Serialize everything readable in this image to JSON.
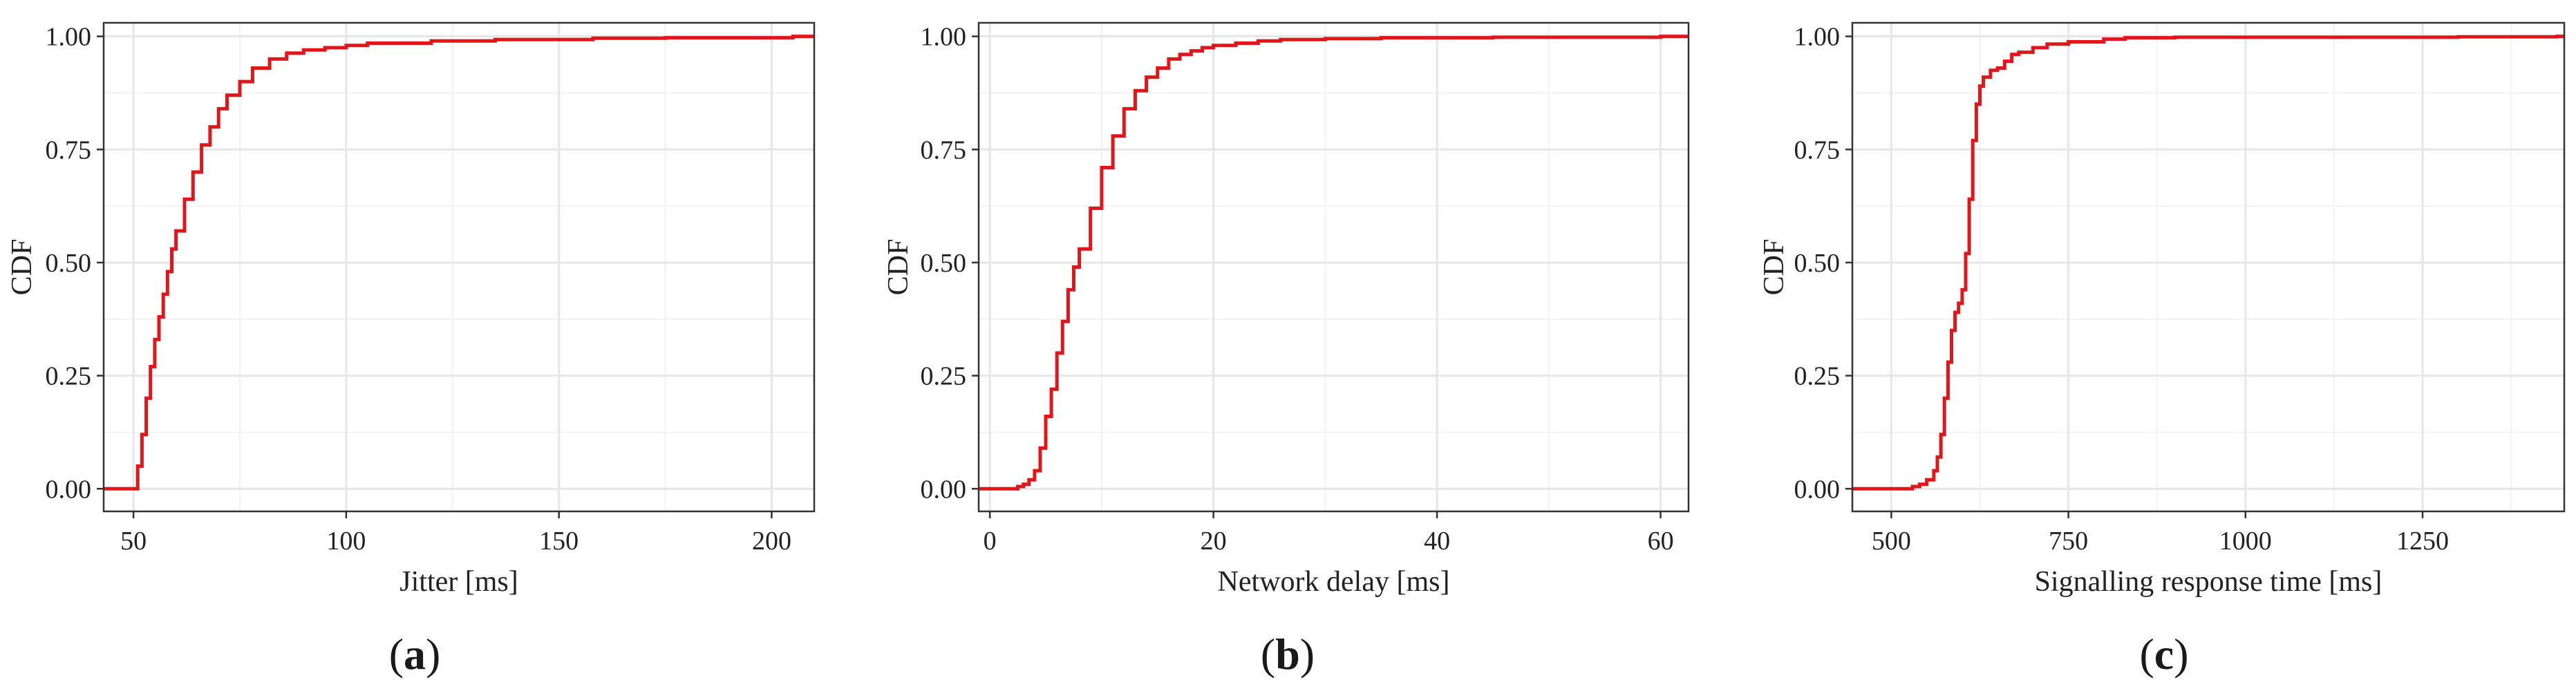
{
  "chart_data": [
    {
      "type": "line",
      "caption": "a",
      "xlabel": "Jitter [ms]",
      "ylabel": "CDF",
      "xlim": [
        43,
        210
      ],
      "ylim": [
        -0.05,
        1.03
      ],
      "xticks": [
        50,
        100,
        150,
        200
      ],
      "yticks": [
        0.0,
        0.25,
        0.5,
        0.75,
        1.0
      ],
      "ytick_labels": [
        "0.00",
        "0.25",
        "0.50",
        "0.75",
        "1.00"
      ],
      "grid": true,
      "line_color": "#e0161b",
      "series": [
        {
          "x": [
            43,
            50,
            51,
            52,
            53,
            54,
            55,
            56,
            57,
            58,
            59,
            60,
            62,
            64,
            66,
            68,
            70,
            72,
            75,
            78,
            82,
            86,
            90,
            95,
            100,
            105,
            120,
            135,
            158,
            175,
            205,
            210
          ],
          "y": [
            0.0,
            0.0,
            0.05,
            0.12,
            0.2,
            0.27,
            0.33,
            0.38,
            0.43,
            0.48,
            0.53,
            0.57,
            0.64,
            0.7,
            0.76,
            0.8,
            0.84,
            0.87,
            0.9,
            0.93,
            0.95,
            0.963,
            0.97,
            0.975,
            0.98,
            0.985,
            0.99,
            0.993,
            0.996,
            0.997,
            1.0,
            1.0
          ]
        }
      ]
    },
    {
      "type": "line",
      "caption": "b",
      "xlabel": "Network delay [ms]",
      "ylabel": "CDF",
      "xlim": [
        -1,
        62.5
      ],
      "ylim": [
        -0.05,
        1.03
      ],
      "xticks": [
        0,
        20,
        40,
        60
      ],
      "yticks": [
        0.0,
        0.25,
        0.5,
        0.75,
        1.0
      ],
      "ytick_labels": [
        "0.00",
        "0.25",
        "0.50",
        "0.75",
        "1.00"
      ],
      "grid": true,
      "line_color": "#e0161b",
      "series": [
        {
          "x": [
            -1,
            2,
            2.5,
            3,
            3.5,
            4,
            4.5,
            5,
            5.5,
            6,
            6.5,
            7,
            7.5,
            8,
            9,
            10,
            11,
            12,
            13,
            14,
            15,
            16,
            17,
            18,
            19,
            20,
            22,
            24,
            26,
            30,
            35,
            45,
            60,
            62.5
          ],
          "y": [
            0.0,
            0.0,
            0.005,
            0.01,
            0.02,
            0.04,
            0.09,
            0.16,
            0.22,
            0.3,
            0.37,
            0.44,
            0.49,
            0.53,
            0.62,
            0.71,
            0.78,
            0.84,
            0.88,
            0.91,
            0.93,
            0.95,
            0.96,
            0.968,
            0.975,
            0.98,
            0.985,
            0.99,
            0.993,
            0.995,
            0.997,
            0.998,
            1.0,
            1.0
          ]
        }
      ]
    },
    {
      "type": "line",
      "caption": "c",
      "xlabel": "Signalling response time [ms]",
      "ylabel": "CDF",
      "xlim": [
        445,
        1450
      ],
      "ylim": [
        -0.05,
        1.03
      ],
      "xticks": [
        500,
        750,
        1000,
        1250
      ],
      "yticks": [
        0.0,
        0.25,
        0.5,
        0.75,
        1.0
      ],
      "ytick_labels": [
        "0.00",
        "0.25",
        "0.50",
        "0.75",
        "1.00"
      ],
      "grid": true,
      "line_color": "#e0161b",
      "series": [
        {
          "x": [
            445,
            520,
            530,
            540,
            550,
            560,
            565,
            570,
            575,
            580,
            585,
            590,
            595,
            600,
            605,
            610,
            615,
            620,
            625,
            630,
            640,
            650,
            660,
            670,
            680,
            700,
            720,
            750,
            800,
            830,
            900,
            1100,
            1300,
            1440,
            1450
          ],
          "y": [
            0.0,
            0.0,
            0.005,
            0.01,
            0.02,
            0.04,
            0.07,
            0.12,
            0.2,
            0.28,
            0.35,
            0.39,
            0.41,
            0.44,
            0.52,
            0.64,
            0.77,
            0.85,
            0.89,
            0.91,
            0.925,
            0.93,
            0.945,
            0.96,
            0.965,
            0.975,
            0.983,
            0.988,
            0.994,
            0.997,
            0.998,
            0.998,
            0.999,
            1.0,
            1.0
          ]
        }
      ]
    }
  ]
}
